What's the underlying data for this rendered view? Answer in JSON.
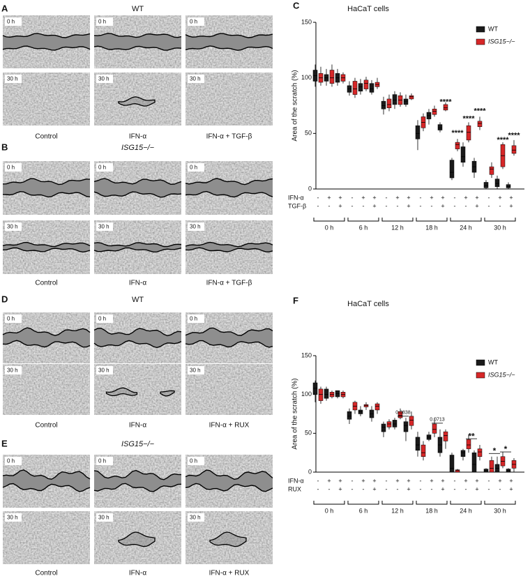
{
  "panels": [
    {
      "letter": "A",
      "title": "WT",
      "rows": [
        "0 h",
        "30 h"
      ],
      "columns": [
        "Control",
        "IFN-α",
        "IFN-α + TGF-β"
      ]
    },
    {
      "letter": "B",
      "title": "ISG15−/−",
      "rows": [
        "0 h",
        "30 h"
      ],
      "columns": [
        "Control",
        "IFN-α",
        "IFN-α + TGF-β"
      ]
    },
    {
      "letter": "D",
      "title": "WT",
      "rows": [
        "0 h",
        "30 h"
      ],
      "columns": [
        "Control",
        "IFN-α",
        "IFN-α + RUX"
      ]
    },
    {
      "letter": "E",
      "title": "ISG15−/−",
      "rows": [
        "0 h",
        "30 h"
      ],
      "columns": [
        "Control",
        "IFN-α",
        "IFN-α + RUX"
      ]
    }
  ],
  "chart_data": [
    {
      "type": "box",
      "label": "C",
      "title": "HaCaT cells",
      "ylabel": "Area of the scratch (%)",
      "ylim": [
        0,
        150
      ],
      "yticks": [
        0,
        50,
        100,
        150
      ],
      "legend": "upper right",
      "groups": [
        "0 h",
        "6 h",
        "12 h",
        "18 h",
        "24 h",
        "30 h"
      ],
      "conditions": [
        {
          "name": "IFN-α",
          "signs": [
            "-",
            "+",
            "+"
          ]
        },
        {
          "name": "TGF-β",
          "signs": [
            "-",
            "-",
            "+"
          ]
        }
      ],
      "series": [
        {
          "name": "WT",
          "color": "#1a1a1a",
          "values": [
            [
              92,
              97,
              102,
              107,
              112
            ],
            [
              93,
              97,
              100,
              103,
              108
            ],
            [
              93,
              96,
              100,
              104,
              108
            ],
            [
              84,
              87,
              90,
              93,
              97
            ],
            [
              85,
              88,
              92,
              95,
              99
            ],
            [
              85,
              87,
              90,
              95,
              98
            ],
            [
              67,
              72,
              75,
              79,
              83
            ],
            [
              72,
              76,
              80,
              85,
              88
            ],
            [
              74,
              76,
              79,
              81,
              85
            ],
            [
              35,
              45,
              50,
              57,
              62
            ],
            [
              58,
              63,
              66,
              69,
              72
            ],
            [
              51,
              53,
              55,
              58,
              60
            ],
            [
              8,
              10,
              15,
              26,
              28
            ],
            [
              20,
              24,
              29,
              38,
              42
            ],
            [
              10,
              15,
              20,
              25,
              28
            ],
            [
              0,
              1,
              3,
              6,
              8
            ],
            [
              0,
              2,
              5,
              9,
              12
            ],
            [
              0,
              1,
              2,
              4,
              6
            ]
          ]
        },
        {
          "name": "ISG15−/−",
          "color": "#d62728",
          "values": [
            [
              93,
              96,
              100,
              104,
              110
            ],
            [
              92,
              95,
              100,
              107,
              112
            ],
            [
              95,
              97,
              100,
              103,
              105
            ],
            [
              82,
              85,
              90,
              97,
              100
            ],
            [
              88,
              90,
              95,
              98,
              101
            ],
            [
              90,
              92,
              94,
              96,
              100
            ],
            [
              70,
              73,
              76,
              81,
              85
            ],
            [
              74,
              76,
              80,
              84,
              87
            ],
            [
              80,
              81,
              83,
              84,
              86
            ],
            [
              52,
              55,
              60,
              65,
              68
            ],
            [
              65,
              67,
              70,
              72,
              75
            ],
            [
              70,
              71,
              73,
              76,
              78
            ],
            [
              34,
              36,
              40,
              42,
              45
            ],
            [
              42,
              44,
              51,
              57,
              60
            ],
            [
              53,
              56,
              59,
              61,
              65
            ],
            [
              10,
              13,
              18,
              20,
              24
            ],
            [
              18,
              20,
              30,
              40,
              42
            ],
            [
              30,
              32,
              35,
              39,
              44
            ]
          ]
        }
      ],
      "annotations": [
        {
          "text": "****",
          "group": 3,
          "condition": 2,
          "y": 78
        },
        {
          "text": "****",
          "group": 4,
          "condition": 0,
          "y": 50
        },
        {
          "text": "****",
          "group": 4,
          "condition": 1,
          "y": 63
        },
        {
          "text": "****",
          "group": 4,
          "condition": 2,
          "y": 70
        },
        {
          "text": "****",
          "group": 5,
          "condition": 1,
          "y": 44
        },
        {
          "text": "****",
          "group": 5,
          "condition": 2,
          "y": 48
        }
      ]
    },
    {
      "type": "box",
      "label": "F",
      "title": "HaCaT cells",
      "ylabel": "Area of the scratch (%)",
      "ylim": [
        0,
        150
      ],
      "yticks": [
        0,
        50,
        100,
        150
      ],
      "legend": "upper right",
      "groups": [
        "0 h",
        "6 h",
        "12 h",
        "18 h",
        "24 h",
        "30 h"
      ],
      "conditions": [
        {
          "name": "IFN-α",
          "signs": [
            "-",
            "+",
            "+"
          ]
        },
        {
          "name": "RUX",
          "signs": [
            "-",
            "-",
            "+"
          ]
        }
      ],
      "series": [
        {
          "name": "WT",
          "color": "#1a1a1a",
          "values": [
            [
              90,
              100,
              108,
              115,
              118
            ],
            [
              92,
              95,
              100,
              107,
              110
            ],
            [
              95,
              97,
              101,
              105,
              105
            ],
            [
              62,
              68,
              72,
              78,
              82
            ],
            [
              72,
              75,
              78,
              80,
              85
            ],
            [
              65,
              70,
              75,
              80,
              85
            ],
            [
              45,
              52,
              58,
              62,
              65
            ],
            [
              55,
              58,
              62,
              67,
              70
            ],
            [
              40,
              52,
              60,
              65,
              70
            ],
            [
              20,
              28,
              35,
              45,
              52
            ],
            [
              40,
              42,
              45,
              48,
              52
            ],
            [
              20,
              25,
              35,
              45,
              55
            ],
            [
              0,
              0,
              5,
              22,
              25
            ],
            [
              15,
              20,
              25,
              28,
              30
            ],
            [
              0,
              0,
              10,
              25,
              28
            ],
            [
              0,
              0,
              2,
              4,
              5
            ],
            [
              0,
              0,
              5,
              10,
              20
            ],
            [
              0,
              0,
              2,
              4,
              5
            ]
          ]
        },
        {
          "name": "ISG15−/−",
          "color": "#d62728",
          "values": [
            [
              88,
              92,
              100,
              107,
              110
            ],
            [
              95,
              97,
              100,
              103,
              105
            ],
            [
              95,
              97,
              100,
              103,
              105
            ],
            [
              75,
              80,
              85,
              90,
              92
            ],
            [
              80,
              84,
              86,
              87,
              90
            ],
            [
              75,
              80,
              85,
              88,
              90
            ],
            [
              55,
              58,
              62,
              65,
              68
            ],
            [
              68,
              70,
              73,
              78,
              82
            ],
            [
              55,
              60,
              67,
              72,
              78
            ],
            [
              15,
              20,
              25,
              35,
              40
            ],
            [
              45,
              50,
              55,
              62,
              70
            ],
            [
              30,
              40,
              47,
              52,
              55
            ],
            [
              0,
              0,
              2,
              3,
              4
            ],
            [
              25,
              30,
              35,
              42,
              48
            ],
            [
              15,
              20,
              26,
              30,
              35
            ],
            [
              0,
              0,
              5,
              15,
              20
            ],
            [
              5,
              8,
              14,
              20,
              26
            ],
            [
              0,
              5,
              10,
              15,
              18
            ]
          ]
        }
      ],
      "annotations": [
        {
          "text": "0.0838",
          "group": 2,
          "from": 1,
          "to": 2,
          "y": 72
        },
        {
          "text": "0.0713",
          "group": 3,
          "from": 1,
          "to": 2,
          "y": 63
        },
        {
          "text": "**",
          "group": 4,
          "from": 1,
          "to": 2,
          "y": 43
        },
        {
          "text": "*",
          "group": 5,
          "from": 0,
          "to": 1,
          "y": 24
        },
        {
          "text": "*",
          "group": 5,
          "from": 1,
          "to": 2,
          "y": 26
        }
      ]
    }
  ]
}
